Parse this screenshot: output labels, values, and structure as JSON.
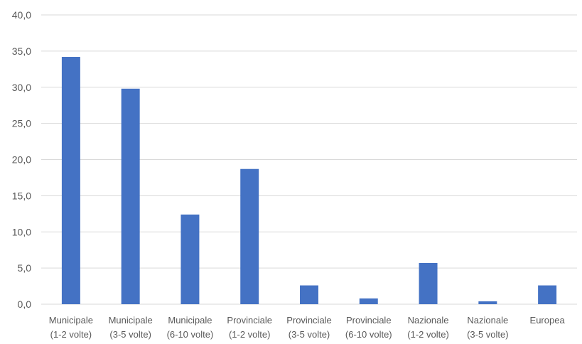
{
  "chart_data": {
    "type": "bar",
    "title": "",
    "xlabel": "",
    "ylabel": "",
    "ylim": [
      0,
      40
    ],
    "yticks": [
      "0,0",
      "5,0",
      "10,0",
      "15,0",
      "20,0",
      "25,0",
      "30,0",
      "35,0",
      "40,0"
    ],
    "grid": true,
    "legend": "none",
    "bar_color": "#4472C4",
    "grid_color": "#D9D9D9",
    "categories": [
      [
        "Municipale",
        "(1-2 volte)"
      ],
      [
        "Municipale",
        "(3-5 volte)"
      ],
      [
        "Municipale",
        "(6-10 volte)"
      ],
      [
        "Provinciale",
        "(1-2 volte)"
      ],
      [
        "Provinciale",
        "(3-5 volte)"
      ],
      [
        "Provinciale",
        "(6-10 volte)"
      ],
      [
        "Nazionale",
        "(1-2 volte)"
      ],
      [
        "Nazionale",
        "(3-5 volte)"
      ],
      [
        "Europea"
      ]
    ],
    "values": [
      34.2,
      29.8,
      12.4,
      18.7,
      2.6,
      0.8,
      5.7,
      0.4,
      2.6
    ]
  }
}
